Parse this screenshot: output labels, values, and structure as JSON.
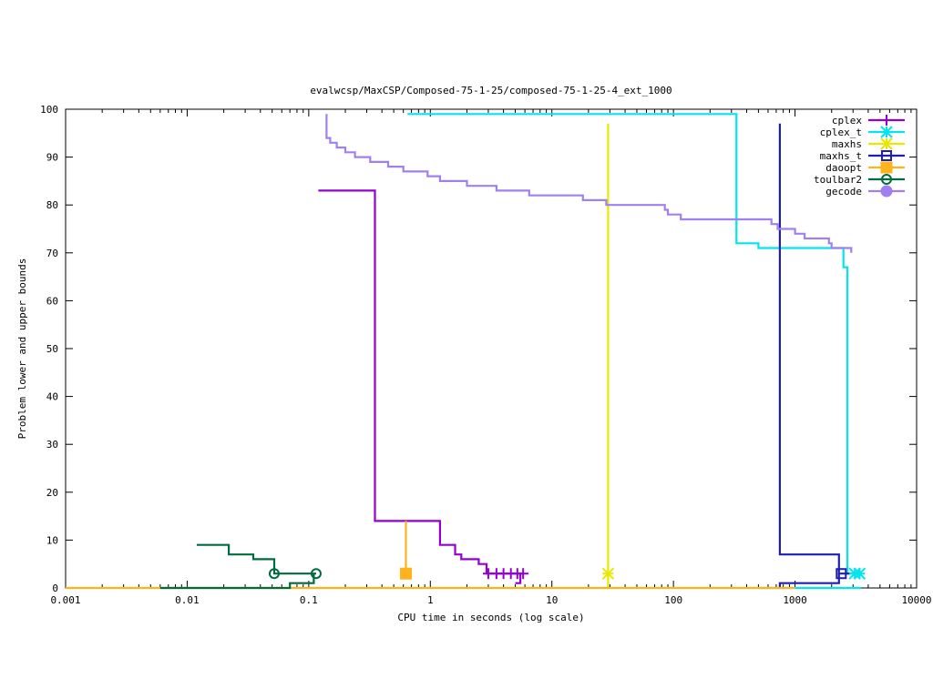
{
  "chart_data": {
    "type": "line",
    "title": "evalwcsp/MaxCSP/Composed-75-1-25/composed-75-1-25-4_ext_1000",
    "xlabel": "CPU time in seconds (log scale)",
    "ylabel": "Problem lower and upper bounds",
    "x_scale": "log",
    "xlim": [
      0.001,
      10000
    ],
    "ylim": [
      0,
      100
    ],
    "x_ticks": [
      0.001,
      0.01,
      0.1,
      1,
      10,
      100,
      1000,
      10000
    ],
    "x_tick_labels": [
      "0.001",
      "0.01",
      "0.1",
      "1",
      "10",
      "100",
      "1000",
      "10000"
    ],
    "y_ticks": [
      0,
      10,
      20,
      30,
      40,
      50,
      60,
      70,
      80,
      90,
      100
    ],
    "y_tick_labels": [
      "0",
      "10",
      "20",
      "30",
      "40",
      "50",
      "60",
      "70",
      "80",
      "90",
      "100"
    ],
    "grid": false,
    "legend_position": "top-right",
    "series": [
      {
        "name": "cplex",
        "color": "#9400d3",
        "marker": "plus",
        "upper": [
          [
            0.12,
            83
          ],
          [
            0.35,
            83
          ],
          [
            0.35,
            14
          ],
          [
            1.2,
            14
          ],
          [
            1.2,
            9
          ],
          [
            1.6,
            9
          ],
          [
            1.6,
            7
          ],
          [
            1.8,
            7
          ],
          [
            1.8,
            6
          ],
          [
            2.5,
            6
          ],
          [
            2.5,
            5
          ],
          [
            2.9,
            5
          ],
          [
            2.9,
            3
          ],
          [
            5.5,
            3
          ]
        ],
        "lower": [
          [
            5.0,
            1
          ],
          [
            5.5,
            1
          ],
          [
            5.5,
            3
          ]
        ],
        "markers": [
          [
            3.0,
            3
          ],
          [
            3.5,
            3
          ],
          [
            4.0,
            3
          ],
          [
            4.6,
            3
          ],
          [
            5.2,
            3
          ],
          [
            5.8,
            3
          ]
        ]
      },
      {
        "name": "cplex_t",
        "color": "#00e5ee",
        "marker": "star",
        "upper": [
          [
            0.65,
            99
          ],
          [
            330,
            99
          ],
          [
            330,
            72
          ],
          [
            500,
            72
          ],
          [
            500,
            71
          ],
          [
            2500,
            71
          ],
          [
            2500,
            67
          ],
          [
            2700,
            67
          ],
          [
            2700,
            3
          ],
          [
            3500,
            3
          ]
        ],
        "lower": [
          [
            500,
            0
          ],
          [
            3500,
            0
          ]
        ],
        "markers": [
          [
            3100,
            3
          ],
          [
            3400,
            3
          ]
        ]
      },
      {
        "name": "maxhs",
        "color": "#e8e800",
        "marker": "star",
        "upper": [
          [
            29,
            97
          ],
          [
            29,
            0
          ]
        ],
        "lower": [],
        "markers": [
          [
            29,
            3
          ]
        ]
      },
      {
        "name": "maxhs_t",
        "color": "#1e1eb4",
        "marker": "square",
        "upper": [
          [
            750,
            97
          ],
          [
            750,
            7
          ],
          [
            2300,
            7
          ],
          [
            2300,
            3
          ],
          [
            2800,
            3
          ]
        ],
        "lower": [
          [
            750,
            0
          ],
          [
            750,
            1
          ],
          [
            2300,
            1
          ],
          [
            2300,
            3
          ]
        ],
        "markers": [
          [
            2400,
            3
          ]
        ]
      },
      {
        "name": "daoopt",
        "color": "#ffb31a",
        "marker": "filled-square",
        "upper": [
          [
            0.63,
            14
          ],
          [
            0.63,
            3
          ]
        ],
        "lower": [
          [
            0.001,
            0
          ],
          [
            1000,
            0
          ]
        ],
        "markers": [
          [
            0.63,
            3
          ]
        ]
      },
      {
        "name": "toulbar2",
        "color": "#006b3c",
        "marker": "circle",
        "upper": [
          [
            0.012,
            9
          ],
          [
            0.022,
            9
          ],
          [
            0.022,
            7
          ],
          [
            0.035,
            7
          ],
          [
            0.035,
            6
          ],
          [
            0.052,
            6
          ],
          [
            0.052,
            3
          ],
          [
            0.115,
            3
          ]
        ],
        "lower": [
          [
            0.006,
            0
          ],
          [
            0.07,
            0
          ],
          [
            0.07,
            1
          ],
          [
            0.11,
            1
          ],
          [
            0.11,
            3
          ]
        ],
        "markers": [
          [
            0.052,
            3
          ],
          [
            0.115,
            3
          ]
        ]
      },
      {
        "name": "gecode",
        "color": "#a080f0",
        "marker": "filled-circle",
        "upper": [
          [
            0.14,
            99
          ],
          [
            0.14,
            94
          ],
          [
            0.15,
            94
          ],
          [
            0.15,
            93
          ],
          [
            0.17,
            93
          ],
          [
            0.17,
            92
          ],
          [
            0.2,
            92
          ],
          [
            0.2,
            91
          ],
          [
            0.24,
            91
          ],
          [
            0.24,
            90
          ],
          [
            0.32,
            90
          ],
          [
            0.32,
            89
          ],
          [
            0.45,
            89
          ],
          [
            0.45,
            88
          ],
          [
            0.6,
            88
          ],
          [
            0.6,
            87
          ],
          [
            0.95,
            87
          ],
          [
            0.95,
            86
          ],
          [
            1.2,
            86
          ],
          [
            1.2,
            85
          ],
          [
            2.0,
            85
          ],
          [
            2.0,
            84
          ],
          [
            3.5,
            84
          ],
          [
            3.5,
            83
          ],
          [
            6.5,
            83
          ],
          [
            6.5,
            82
          ],
          [
            18,
            82
          ],
          [
            18,
            81
          ],
          [
            28,
            81
          ],
          [
            28,
            80
          ],
          [
            85,
            80
          ],
          [
            85,
            79
          ],
          [
            90,
            79
          ],
          [
            90,
            78
          ],
          [
            115,
            78
          ],
          [
            115,
            77
          ],
          [
            640,
            77
          ],
          [
            640,
            76
          ],
          [
            720,
            76
          ],
          [
            720,
            75
          ],
          [
            1000,
            75
          ],
          [
            1000,
            74
          ],
          [
            1200,
            74
          ],
          [
            1200,
            73
          ],
          [
            1900,
            73
          ],
          [
            1900,
            72
          ],
          [
            2000,
            72
          ],
          [
            2000,
            71
          ],
          [
            2900,
            71
          ],
          [
            2900,
            70
          ]
        ],
        "lower": [],
        "markers": []
      }
    ]
  }
}
